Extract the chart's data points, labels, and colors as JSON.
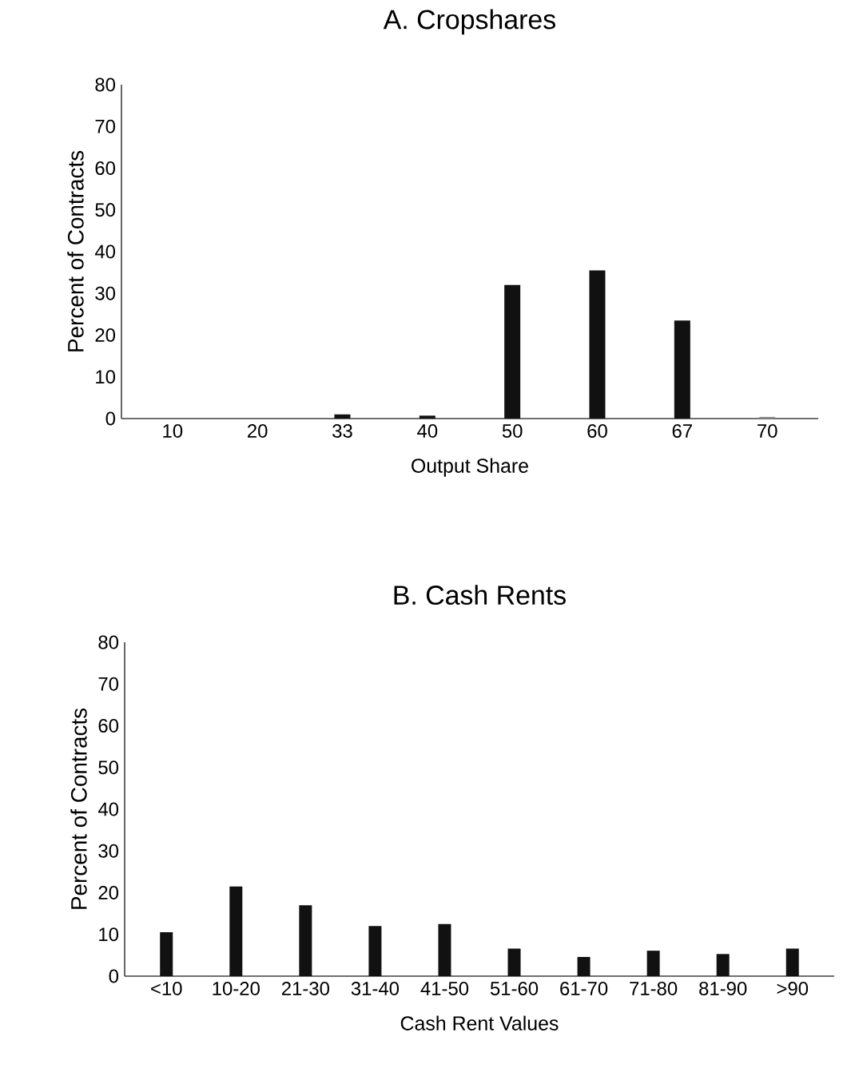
{
  "chart_data": [
    {
      "type": "bar",
      "title": "A. Cropshares",
      "xlabel": "Output Share",
      "ylabel": "Percent of Contracts",
      "categories": [
        "10",
        "20",
        "33",
        "40",
        "50",
        "60",
        "67",
        "70"
      ],
      "values": [
        0,
        0,
        1,
        0.7,
        32,
        35.5,
        23.5,
        0.4
      ],
      "colors": [
        "#111111",
        "#111111",
        "#111111",
        "#111111",
        "#111111",
        "#111111",
        "#111111",
        "#888888"
      ],
      "ylim": [
        0,
        80
      ],
      "yticks": [
        0,
        10,
        20,
        30,
        40,
        50,
        60,
        70,
        80
      ]
    },
    {
      "type": "bar",
      "title": "B. Cash Rents",
      "xlabel": "Cash Rent Values",
      "ylabel": "Percent of Contracts",
      "categories": [
        "<10",
        "10-20",
        "21-30",
        "31-40",
        "41-50",
        "51-60",
        "61-70",
        "71-80",
        "81-90",
        ">90"
      ],
      "values": [
        10.5,
        21.5,
        17,
        12,
        12.5,
        6.6,
        4.6,
        6.1,
        5.3,
        6.6
      ],
      "color": "#111111",
      "ylim": [
        0,
        80
      ],
      "yticks": [
        0,
        10,
        20,
        30,
        40,
        50,
        60,
        70,
        80
      ]
    }
  ]
}
